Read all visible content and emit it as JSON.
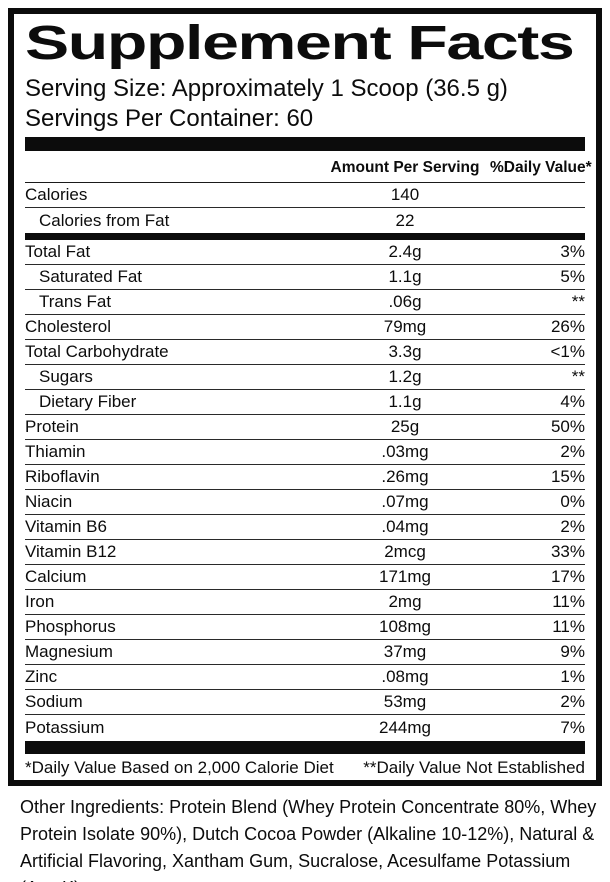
{
  "panel": {
    "title": "Supplement Facts",
    "serving_size": "Serving Size: Approximately 1 Scoop (36.5 g)",
    "servings_per_container": "Servings Per Container: 60",
    "columns": {
      "amount": "Amount Per Serving",
      "dv": "%Daily Value*"
    },
    "calorie_rows": [
      {
        "name": "Calories",
        "amount": "140",
        "dv": "",
        "indent": false
      },
      {
        "name": "Calories from Fat",
        "amount": "22",
        "dv": "",
        "indent": true
      }
    ],
    "nutrient_rows": [
      {
        "name": "Total Fat",
        "amount": "2.4g",
        "dv": "3%",
        "indent": false
      },
      {
        "name": "Saturated Fat",
        "amount": "1.1g",
        "dv": "5%",
        "indent": true
      },
      {
        "name": "Trans Fat",
        "amount": ".06g",
        "dv": "**",
        "indent": true
      },
      {
        "name": "Cholesterol",
        "amount": "79mg",
        "dv": "26%",
        "indent": false
      },
      {
        "name": "Total Carbohydrate",
        "amount": "3.3g",
        "dv": "<1%",
        "indent": false
      },
      {
        "name": "Sugars",
        "amount": "1.2g",
        "dv": "**",
        "indent": true
      },
      {
        "name": "Dietary Fiber",
        "amount": "1.1g",
        "dv": "4%",
        "indent": true
      },
      {
        "name": "Protein",
        "amount": "25g",
        "dv": "50%",
        "indent": false
      },
      {
        "name": "Thiamin",
        "amount": ".03mg",
        "dv": "2%",
        "indent": false
      },
      {
        "name": "Riboflavin",
        "amount": ".26mg",
        "dv": "15%",
        "indent": false
      },
      {
        "name": "Niacin",
        "amount": ".07mg",
        "dv": "0%",
        "indent": false
      },
      {
        "name": "Vitamin B6",
        "amount": ".04mg",
        "dv": "2%",
        "indent": false
      },
      {
        "name": "Vitamin B12",
        "amount": "2mcg",
        "dv": "33%",
        "indent": false
      },
      {
        "name": "Calcium",
        "amount": "171mg",
        "dv": "17%",
        "indent": false
      },
      {
        "name": "Iron",
        "amount": "2mg",
        "dv": "11%",
        "indent": false
      },
      {
        "name": "Phosphorus",
        "amount": "108mg",
        "dv": "11%",
        "indent": false
      },
      {
        "name": "Magnesium",
        "amount": "37mg",
        "dv": "9%",
        "indent": false
      },
      {
        "name": "Zinc",
        "amount": ".08mg",
        "dv": "1%",
        "indent": false
      },
      {
        "name": "Sodium",
        "amount": "53mg",
        "dv": "2%",
        "indent": false
      },
      {
        "name": "Potassium",
        "amount": "244mg",
        "dv": "7%",
        "indent": false
      }
    ],
    "footnotes": {
      "daily_value": "*Daily Value Based on 2,000 Calorie Diet",
      "not_established": "**Daily Value Not Established"
    },
    "other_ingredients": "Other Ingredients: Protein Blend (Whey Protein Concentrate 80%, Whey Protein Isolate 90%), Dutch Cocoa Powder (Alkaline 10-12%), Natural & Artificial Flavoring, Xantham Gum, Sucralose, Acesulfame Potassium (Ace K)",
    "colors": {
      "ink": "#0c0c0c",
      "background": "#ffffff"
    }
  }
}
